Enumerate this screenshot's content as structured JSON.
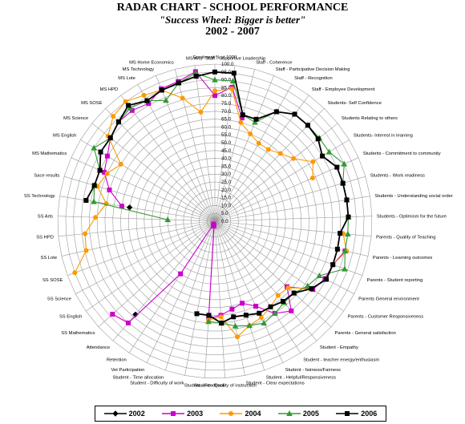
{
  "title": {
    "line1": "RADAR CHART - SCHOOL PERFORMANCE",
    "line2": "\"Success Wheel: Bigger is better\"",
    "line3": "2002 - 2007"
  },
  "chart_data": {
    "type": "radar",
    "rlim": [
      0,
      100
    ],
    "rticks": [
      "0.0",
      "5.0",
      "10.0",
      "15.0",
      "20.0",
      "25.0",
      "30.0",
      "35.0",
      "40.0",
      "45.0",
      "50.0",
      "55.0",
      "60.0",
      "65.0",
      "70.0",
      "75.0",
      "80.0",
      "85.0",
      "90.0",
      "95.0",
      "100.0"
    ],
    "categories": [
      "Enrolment % at 1000",
      "Staff - Supportive Leadership",
      "Staff - Coherence",
      "Staff - Participative Decision Making",
      "Staff - Recognition",
      "Staff - Employee Development",
      "Students- Self Confidence",
      "Students Relating to others",
      "Students- Interest in learning",
      "Students - Commitment to community",
      "Students - Work readiness",
      "Students - Understanding social order",
      "Students - Optimism for the future",
      "Parents - Quality of Teaching",
      "Parents - Learning outcomes",
      "Parents - Student reporting",
      "Parents General environment",
      "Parents - Customer Responsiveness",
      "Parents - General satisfaction",
      "Student - Empathy",
      "Student - teacher energy/enthusiasm",
      "Student - fairness/Fairness",
      "Student - Helpful/Responsiveness",
      "Student - Clear expectations",
      "Student - Quality of instruction",
      "Student - Feedback",
      "Student - Difficulty of work",
      "Student - Time allocation",
      "Vet Participation",
      "Retention",
      "Attendance",
      "SS Mathematics",
      "SS English",
      "SS Science",
      "SS SOSE",
      "SS Lote",
      "SS HPD",
      "SS Arts",
      "SS Technology",
      "Sace results",
      "MS Mathematics",
      "MS English",
      "MS Science",
      "MS SOSE",
      "MS HPD",
      "MS Lote",
      "MS Technology",
      "MS Home Economics",
      "MS Arts"
    ],
    "series": [
      {
        "name": "2002",
        "color": "#000000",
        "marker": "diamond",
        "values": [
          null,
          null,
          null,
          null,
          null,
          null,
          null,
          null,
          null,
          null,
          null,
          null,
          null,
          null,
          null,
          null,
          null,
          null,
          null,
          null,
          null,
          null,
          null,
          null,
          null,
          null,
          null,
          null,
          null,
          null,
          78,
          null,
          null,
          null,
          null,
          null,
          null,
          null,
          55,
          null,
          null,
          null,
          null,
          null,
          null,
          null,
          null,
          null,
          null
        ]
      },
      {
        "name": "2003",
        "color": "#cc00cc",
        "marker": "square",
        "values": [
          80,
          86,
          68,
          null,
          null,
          null,
          null,
          null,
          null,
          null,
          null,
          null,
          null,
          null,
          85,
          80,
          79,
          76,
          62,
          75,
          70,
          60,
          55,
          57,
          60,
          62,
          3,
          3,
          2,
          40,
          85,
          88,
          null,
          null,
          null,
          null,
          null,
          null,
          60,
          70,
          77,
          80,
          85,
          88,
          88,
          86,
          91,
          92,
          96
        ]
      },
      {
        "name": "2004",
        "color": "#ff9900",
        "marker": "circle",
        "values": [
          83,
          85,
          65,
          60,
          57,
          57,
          60,
          64,
          73,
          68,
          null,
          null,
          null,
          82,
          86,
          80,
          80,
          75,
          63,
          62,
          65,
          68,
          70,
          75,
          61,
          63,
          null,
          null,
          null,
          null,
          null,
          null,
          null,
          null,
          95,
          84,
          83,
          76,
          70,
          78,
          75,
          70,
          87,
          93,
          95,
          92,
          90,
          81,
          70
        ]
      },
      {
        "name": "2005",
        "color": "#339933",
        "marker": "triangle",
        "values": [
          90,
          90,
          70,
          68,
          80,
          85,
          85,
          85,
          85,
          90,
          85,
          85,
          85,
          85,
          85,
          88,
          75,
          72,
          68,
          68,
          70,
          72,
          70,
          68,
          65,
          64,
          null,
          null,
          null,
          null,
          null,
          null,
          null,
          null,
          null,
          null,
          null,
          30,
          78,
          80,
          80,
          90,
          85,
          88,
          90,
          88,
          83,
          91,
          95
        ]
      },
      {
        "name": "2006",
        "color": "#000000",
        "marker": "square",
        "values": [
          95,
          95,
          70,
          70,
          80,
          85,
          85,
          84,
          80,
          85,
          85,
          85,
          85,
          80,
          80,
          80,
          80,
          75,
          68,
          67,
          65,
          65,
          63,
          62,
          65,
          60,
          60,
          null,
          null,
          null,
          null,
          null,
          null,
          null,
          null,
          null,
          null,
          null,
          83,
          80,
          80,
          85,
          85,
          88,
          92,
          88,
          90,
          91,
          93
        ]
      }
    ]
  }
}
